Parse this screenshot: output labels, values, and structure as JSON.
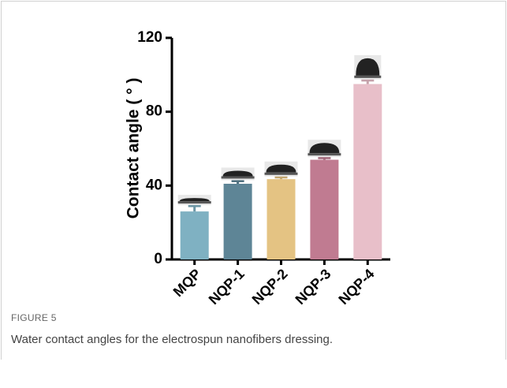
{
  "chart_data": {
    "type": "bar",
    "y_label": "Contact angle ( ° )",
    "categories": [
      "MQP",
      "NQP-1",
      "NQP-2",
      "NQP-3",
      "NQP-4"
    ],
    "values": [
      26,
      41,
      43.5,
      54,
      95
    ],
    "errors": [
      3,
      1.5,
      1,
      1,
      2
    ],
    "colors": [
      "#7fb1c2",
      "#5e8596",
      "#e4c383",
      "#c07b91",
      "#e8bfc9"
    ],
    "ylim": [
      0,
      120
    ],
    "yticks": [
      0,
      40,
      80,
      120
    ],
    "grid": false
  },
  "caption": {
    "label": "FIGURE 5",
    "text": "Water contact angles for the electrospun nanofibers dressing."
  }
}
